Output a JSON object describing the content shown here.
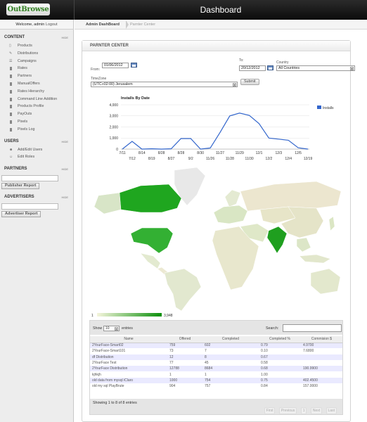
{
  "app": {
    "logo_text": "OutBrowse",
    "header_title": "Dashboard",
    "welcome_text": "Welcome, admin",
    "logout_label": "Logout"
  },
  "breadcrumb": {
    "items": [
      "Admin DashBoard",
      "Parnter Center"
    ]
  },
  "sidebar": {
    "content": {
      "title": "CONTENT",
      "hide_label": "HIDE",
      "items": [
        {
          "label": "Products",
          "icon": "document-icon"
        },
        {
          "label": "Distributions",
          "icon": "pencil-icon"
        },
        {
          "label": "Campaigns",
          "icon": "list-icon"
        },
        {
          "label": "Rates",
          "icon": "bookmark-icon"
        },
        {
          "label": "Partners",
          "icon": "bookmark-icon"
        },
        {
          "label": "ManualOffers",
          "icon": "bookmark-icon"
        },
        {
          "label": "Rates Hierarchy",
          "icon": "bookmark-icon"
        },
        {
          "label": "Command Line Addition",
          "icon": "bookmark-icon"
        },
        {
          "label": "Products Profile",
          "icon": "bookmark-icon"
        },
        {
          "label": "PayOuts",
          "icon": "bookmark-icon"
        },
        {
          "label": "Pixels",
          "icon": "bookmark-icon"
        },
        {
          "label": "Pixels Log",
          "icon": "bookmark-icon"
        }
      ]
    },
    "users": {
      "title": "USERS",
      "hide_label": "HIDE",
      "items": [
        {
          "label": "Add/Edit Users",
          "icon": "users-icon"
        },
        {
          "label": "Edit Roles",
          "icon": "user-edit-icon"
        }
      ]
    },
    "partners": {
      "title": "PARTNERS",
      "hide_label": "HIDE",
      "input_value": "",
      "button_label": "Publisher Report"
    },
    "advertisers": {
      "title": "ADVERTISERS",
      "hide_label": "HIDE",
      "input_value": "",
      "button_label": "Advertiser Report"
    }
  },
  "panel": {
    "title": "PARNTER CENTER",
    "from_label": "From:",
    "from_value": "01/06/2012",
    "to_label": "To:",
    "to_value": "20/12/2012",
    "country_label": "Country",
    "country_value": "All Countries",
    "timezone_label": "TimeZone",
    "timezone_value": "(UTC+02:00) Jerusalem",
    "submit_label": "Submit"
  },
  "chart_data": {
    "type": "line",
    "title": "Installs By Date",
    "legend": "Installs",
    "legend_position": "right",
    "ylim": [
      0,
      4000
    ],
    "yticks": [
      "0",
      "1,000",
      "2,000",
      "3,000",
      "4,000"
    ],
    "xticks_top": [
      "7/11",
      "8/14",
      "8/28",
      "8/28",
      "8/30",
      "11/27",
      "11/29",
      "12/1",
      "12/3",
      "12/5"
    ],
    "xticks_bottom": [
      "7/12",
      "8/19",
      "8/27",
      "9/2",
      "11/26",
      "11/28",
      "11/30",
      "12/2",
      "12/4",
      "12/19"
    ],
    "x": [
      "7/11",
      "7/12",
      "8/14",
      "8/19",
      "8/28",
      "8/27",
      "8/28",
      "9/2",
      "8/30",
      "11/26",
      "11/27",
      "11/28",
      "11/29",
      "11/30",
      "12/1",
      "12/2",
      "12/3",
      "12/4",
      "12/5",
      "12/19"
    ],
    "values": [
      0,
      700,
      0,
      30,
      0,
      30,
      950,
      950,
      0,
      100,
      1500,
      3000,
      3250,
      3050,
      2300,
      1000,
      900,
      800,
      120,
      0
    ],
    "series_color": "#3366cc"
  },
  "map": {
    "legend_min": "1",
    "legend_max": "3,948",
    "highlight_color": "#0a8f0a",
    "low_color": "#f5f5dc"
  },
  "table": {
    "show_label": "Show",
    "show_value": "10",
    "entries_label": "entries",
    "search_label": "Search:",
    "headers": [
      "Name",
      "Offered",
      "Completed",
      "Completed %",
      "Commision $"
    ],
    "rows": [
      [
        "2YourFace-Smart02",
        "759",
        "602",
        "0.79",
        "4.9700"
      ],
      [
        "2YourFace-Smart101",
        "73",
        "7",
        "0.10",
        "7.6800"
      ],
      [
        "df Distribution",
        "12",
        "8",
        "0.67",
        ""
      ],
      [
        "2YourFace Test",
        "77",
        "45",
        "0.58",
        ""
      ],
      [
        "2YourFace Distribution",
        "12788",
        "8684",
        "0.68",
        "190.9900"
      ],
      [
        "kjhkjh",
        "1",
        "1",
        "1.00",
        ""
      ],
      [
        "old data from mysql iClaro",
        "1000",
        "754",
        "0.75",
        "402.4500"
      ],
      [
        "old my sql PlayBrute",
        "904",
        "757",
        "0.84",
        "157.0000"
      ]
    ],
    "footer_info": "Showing 1 to 8 of 8 entries",
    "pager": [
      "First",
      "Previous",
      "1",
      "Next",
      "Last"
    ]
  }
}
